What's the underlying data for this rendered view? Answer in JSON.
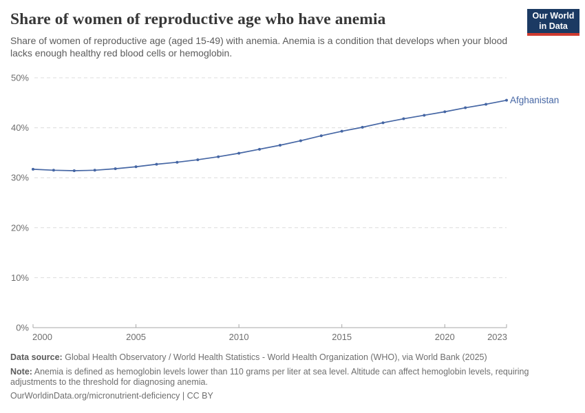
{
  "header": {
    "title": "Share of women of reproductive age who have anemia",
    "subtitle": "Share of women of reproductive age (aged 15-49) with anemia. Anemia is a condition that develops when your blood lacks enough healthy red blood cells or hemoglobin.",
    "logo": {
      "line1": "Our World",
      "line2": "in Data",
      "bg_color": "#1b3a63",
      "accent_color": "#cf3b30"
    }
  },
  "chart_data": {
    "type": "line",
    "title": "Share of women of reproductive age who have anemia",
    "xlabel": "",
    "ylabel": "",
    "x": [
      2000,
      2001,
      2002,
      2003,
      2004,
      2005,
      2006,
      2007,
      2008,
      2009,
      2010,
      2011,
      2012,
      2013,
      2014,
      2015,
      2016,
      2017,
      2018,
      2019,
      2020,
      2021,
      2022,
      2023
    ],
    "series": [
      {
        "name": "Afghanistan",
        "color": "#4566a4",
        "values": [
          31.7,
          31.5,
          31.4,
          31.5,
          31.8,
          32.2,
          32.7,
          33.1,
          33.6,
          34.2,
          34.9,
          35.7,
          36.5,
          37.4,
          38.4,
          39.3,
          40.1,
          41.0,
          41.8,
          42.5,
          43.2,
          44.0,
          44.7,
          45.5
        ]
      }
    ],
    "ylim": [
      0,
      50
    ],
    "y_ticks": [
      0,
      10,
      20,
      30,
      40,
      50
    ],
    "y_tick_suffix": "%",
    "x_ticks": [
      2000,
      2005,
      2010,
      2015,
      2020,
      2023
    ],
    "grid": "horizontal-dashed",
    "legend": "line-end-label",
    "marker": "dot-every-year"
  },
  "footer": {
    "data_source_label": "Data source:",
    "data_source": "Global Health Observatory / World Health Statistics - World Health Organization (WHO), via World Bank (2025)",
    "note_label": "Note:",
    "note": "Anemia is defined as hemoglobin levels lower than 110 grams per liter at sea level. Altitude can affect hemoglobin levels, requiring adjustments to the threshold for diagnosing anemia.",
    "url": "OurWorldinData.org/micronutrient-deficiency | CC BY"
  }
}
